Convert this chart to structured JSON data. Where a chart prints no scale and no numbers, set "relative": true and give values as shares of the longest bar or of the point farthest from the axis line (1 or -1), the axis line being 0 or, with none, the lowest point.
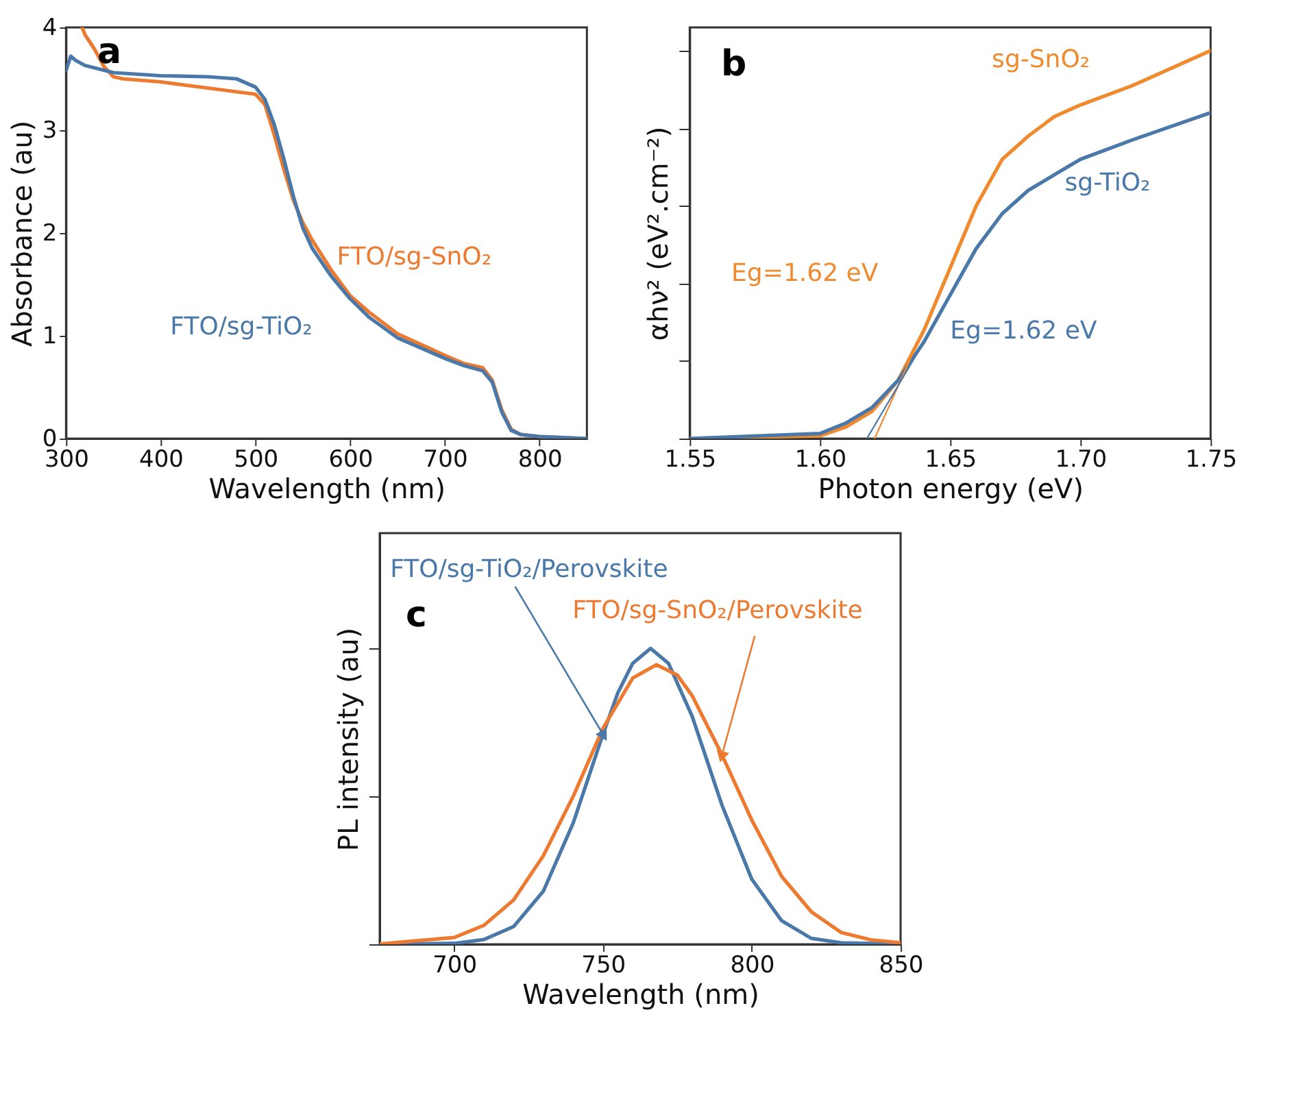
{
  "chart_data": [
    {
      "type": "line",
      "title": "a",
      "xlabel": "Wavelength (nm)",
      "ylabel": "Absorbance (au)",
      "xlim": [
        300,
        850
      ],
      "xticks": [
        300,
        400,
        500,
        600,
        700,
        800
      ],
      "ylim": [
        0,
        4
      ],
      "yticks": [
        0,
        1,
        2,
        3,
        4
      ],
      "grid": false,
      "legend": false,
      "series": [
        {
          "name": "FTO/sg-SnO₂",
          "color": "#ec7a31",
          "x": [
            317,
            320,
            330,
            340,
            350,
            360,
            400,
            450,
            500,
            510,
            520,
            530,
            540,
            550,
            560,
            580,
            600,
            620,
            650,
            700,
            720,
            740,
            750,
            760,
            770,
            780,
            800,
            850
          ],
          "values": [
            4.0,
            3.93,
            3.79,
            3.62,
            3.52,
            3.5,
            3.47,
            3.41,
            3.35,
            3.25,
            2.95,
            2.62,
            2.32,
            2.1,
            1.93,
            1.64,
            1.39,
            1.23,
            1.02,
            0.81,
            0.73,
            0.69,
            0.57,
            0.28,
            0.09,
            0.04,
            0.02,
            0.0
          ]
        },
        {
          "name": "FTO/sg-TiO₂",
          "color": "#4a78a8",
          "x": [
            300,
            305,
            310,
            320,
            350,
            400,
            450,
            480,
            500,
            510,
            520,
            530,
            540,
            550,
            560,
            580,
            600,
            620,
            650,
            700,
            720,
            740,
            750,
            760,
            770,
            780,
            800,
            850
          ],
          "values": [
            3.58,
            3.72,
            3.68,
            3.63,
            3.56,
            3.53,
            3.52,
            3.5,
            3.42,
            3.3,
            3.05,
            2.72,
            2.36,
            2.05,
            1.85,
            1.58,
            1.36,
            1.18,
            0.98,
            0.78,
            0.71,
            0.66,
            0.55,
            0.26,
            0.08,
            0.04,
            0.02,
            0.0
          ]
        }
      ]
    },
    {
      "type": "line",
      "title": "b",
      "xlabel": "Photon energy (eV)",
      "ylabel": "αhν² (eV².cm⁻²)",
      "xlim": [
        1.55,
        1.75
      ],
      "xticks": [
        {
          "value": 1.55,
          "label": "1.55"
        },
        {
          "value": 1.6,
          "label": "1.60"
        },
        {
          "value": 1.65,
          "label": "1.65"
        },
        {
          "value": 1.7,
          "label": "1.70"
        },
        {
          "value": 1.75,
          "label": "1.75"
        }
      ],
      "relative": true,
      "tick_labels": "x",
      "grid": false,
      "legend": false,
      "annotations": [
        "Eg=1.62 eV",
        "Eg=1.62 eV"
      ],
      "series": [
        {
          "name": "sg-SnO₂",
          "color": "#ef8a2e",
          "x": [
            1.55,
            1.6,
            1.61,
            1.62,
            1.63,
            1.64,
            1.65,
            1.66,
            1.67,
            1.68,
            1.69,
            1.7,
            1.72,
            1.75
          ],
          "values": [
            0,
            0.007,
            0.03,
            0.07,
            0.15,
            0.28,
            0.44,
            0.6,
            0.72,
            0.78,
            0.83,
            0.86,
            0.91,
            1
          ]
        },
        {
          "name": "sg-TiO₂",
          "color": "#4a78a8",
          "x": [
            1.55,
            1.6,
            1.61,
            1.62,
            1.63,
            1.64,
            1.65,
            1.66,
            1.67,
            1.68,
            1.69,
            1.7,
            1.72,
            1.75
          ],
          "values": [
            0,
            0.013,
            0.04,
            0.08,
            0.15,
            0.25,
            0.37,
            0.49,
            0.58,
            0.64,
            0.68,
            0.72,
            0.77,
            0.84
          ]
        },
        {
          "color": "#ef8a2e",
          "x": [
            1.621,
            1.645
          ],
          "values": [
            0,
            0.36
          ]
        },
        {
          "color": "#4a78a8",
          "x": [
            1.618,
            1.64
          ],
          "values": [
            0,
            0.25
          ]
        }
      ]
    },
    {
      "type": "line",
      "title": "c",
      "xlabel": "Wavelength (nm)",
      "ylabel": "PL intensity (au)",
      "xlim": [
        675,
        850
      ],
      "xticks": [
        700,
        750,
        800,
        850
      ],
      "relative": true,
      "tick_labels": "x",
      "grid": false,
      "legend": false,
      "series": [
        {
          "name": "FTO/sg-TiO₂/Perovskite",
          "color": "#4a78a8",
          "x": [
            675,
            700,
            710,
            720,
            730,
            740,
            750,
            755,
            760,
            766,
            772,
            780,
            790,
            800,
            810,
            820,
            830,
            850
          ],
          "values": [
            0,
            0.003,
            0.016,
            0.06,
            0.18,
            0.41,
            0.71,
            0.85,
            0.95,
            1,
            0.95,
            0.77,
            0.47,
            0.22,
            0.08,
            0.02,
            0.005,
            0
          ]
        },
        {
          "name": "FTO/sg-SnO₂/Perovskite",
          "color": "#ec7a31",
          "x": [
            675,
            700,
            710,
            720,
            730,
            740,
            750,
            760,
            768,
            775,
            780,
            790,
            800,
            810,
            820,
            830,
            840,
            850
          ],
          "values": [
            0.001,
            0.023,
            0.064,
            0.15,
            0.3,
            0.5,
            0.73,
            0.9,
            0.945,
            0.91,
            0.84,
            0.64,
            0.42,
            0.23,
            0.11,
            0.04,
            0.015,
            0.005
          ]
        }
      ]
    }
  ]
}
